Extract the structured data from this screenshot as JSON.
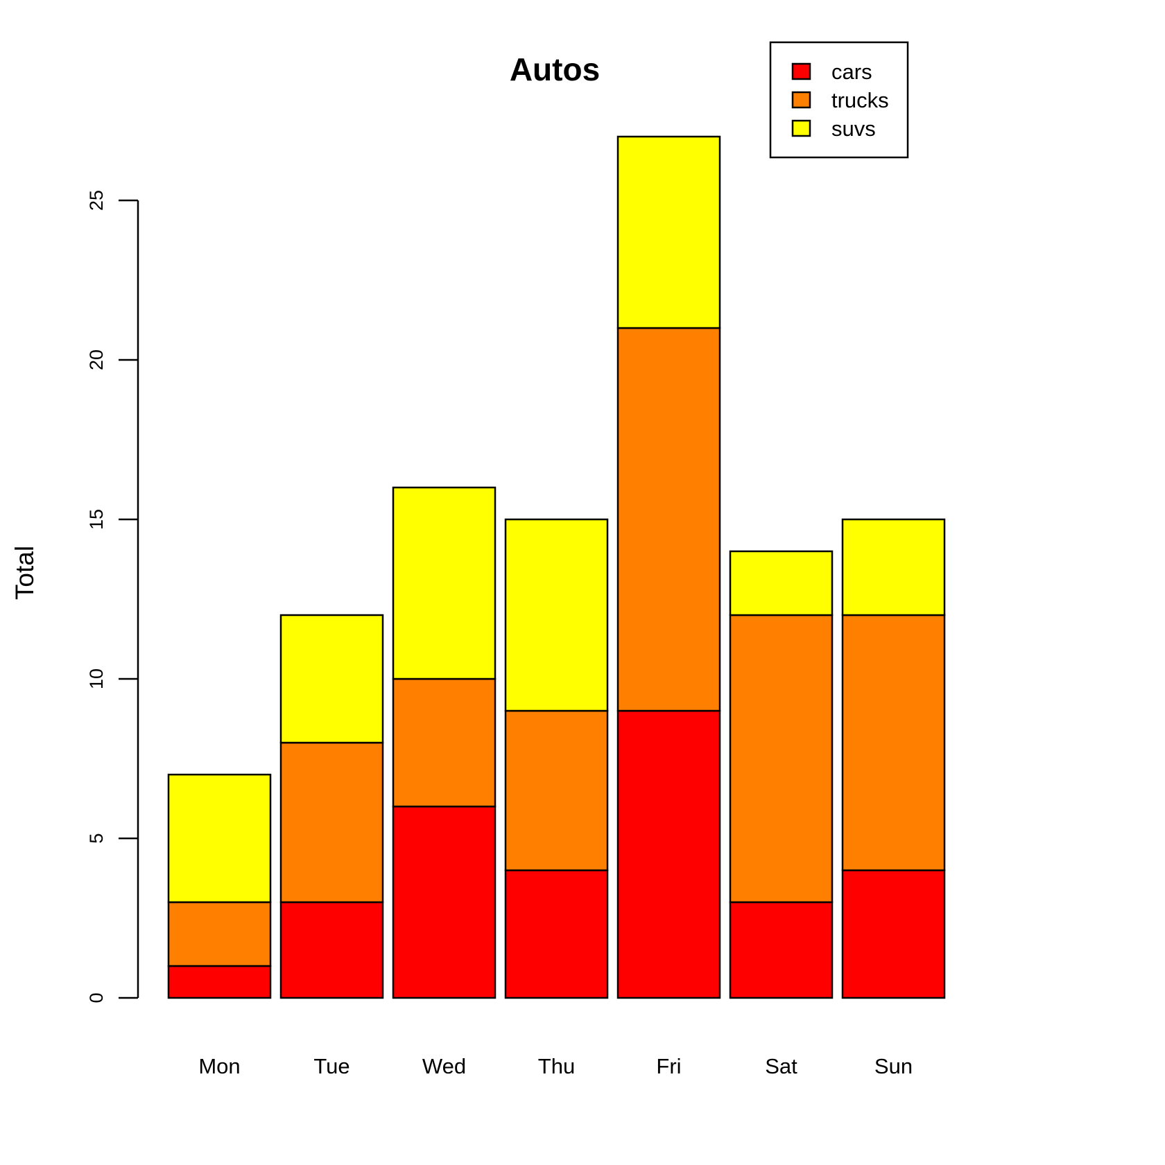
{
  "chart_data": {
    "type": "bar",
    "stacked": true,
    "title": "Autos",
    "xlabel": "",
    "ylabel": "Total",
    "ylim": [
      0,
      25
    ],
    "yticks": [
      0,
      5,
      10,
      15,
      20,
      25
    ],
    "categories": [
      "Mon",
      "Tue",
      "Wed",
      "Thu",
      "Fri",
      "Sat",
      "Sun"
    ],
    "series": [
      {
        "name": "cars",
        "color": "#ff0000",
        "values": [
          1,
          3,
          6,
          4,
          9,
          3,
          4
        ]
      },
      {
        "name": "trucks",
        "color": "#ff8000",
        "values": [
          2,
          5,
          4,
          5,
          12,
          9,
          8
        ]
      },
      {
        "name": "suvs",
        "color": "#ffff00",
        "values": [
          4,
          4,
          6,
          6,
          6,
          2,
          3
        ]
      }
    ],
    "legend_position": "top-right"
  }
}
